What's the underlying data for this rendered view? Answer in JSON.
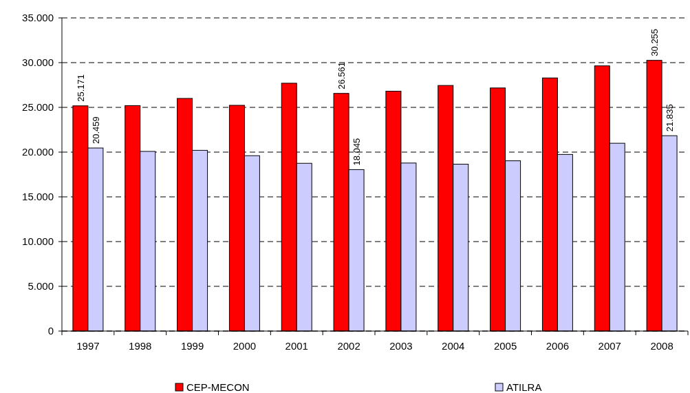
{
  "chart_data": {
    "type": "bar",
    "categories": [
      "1997",
      "1998",
      "1999",
      "2000",
      "2001",
      "2002",
      "2003",
      "2004",
      "2005",
      "2006",
      "2007",
      "2008"
    ],
    "series": [
      {
        "name": "CEP-MECON",
        "color": "#ff0000",
        "values": [
          25171,
          25200,
          26000,
          25230,
          27700,
          26561,
          26810,
          27450,
          27170,
          28290,
          29640,
          30255
        ],
        "value_labels": [
          "25.171",
          null,
          null,
          null,
          null,
          "26.561",
          null,
          null,
          null,
          null,
          null,
          "30.255"
        ]
      },
      {
        "name": "ATILRA",
        "color": "#ccccff",
        "values": [
          20459,
          20080,
          20200,
          19600,
          18750,
          18045,
          18780,
          18650,
          19030,
          19740,
          20990,
          21835
        ],
        "value_labels": [
          "20.459",
          null,
          null,
          null,
          null,
          "18.045",
          null,
          null,
          null,
          null,
          null,
          "21.835"
        ]
      }
    ],
    "ylim": [
      0,
      35000
    ],
    "yticks": [
      {
        "value": 0,
        "label": "0"
      },
      {
        "value": 5000,
        "label": "5.000"
      },
      {
        "value": 10000,
        "label": "10.000"
      },
      {
        "value": 15000,
        "label": "15.000"
      },
      {
        "value": 20000,
        "label": "20.000"
      },
      {
        "value": 25000,
        "label": "25.000"
      },
      {
        "value": 30000,
        "label": "30.000"
      },
      {
        "value": 35000,
        "label": "35.000"
      }
    ],
    "grid": "y",
    "legend": "bottom"
  }
}
